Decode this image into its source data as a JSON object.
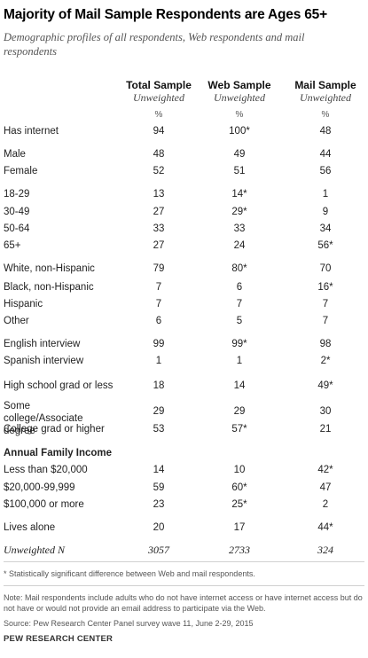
{
  "title": "Majority of Mail Sample Respondents are Ages 65+",
  "subtitle": "Demographic profiles of all respondents, Web respondents and mail respondents",
  "columns": [
    {
      "label": "Total Sample",
      "sub": "Unweighted",
      "unit": "%"
    },
    {
      "label": "Web Sample",
      "sub": "Unweighted",
      "unit": "%"
    },
    {
      "label": "Mail Sample",
      "sub": "Unweighted",
      "unit": "%"
    }
  ],
  "rows": [
    {
      "label": "Has internet",
      "values": [
        "94",
        "100*",
        "48"
      ]
    },
    {
      "label": "Male",
      "values": [
        "48",
        "49",
        "44"
      ]
    },
    {
      "label": "Female",
      "values": [
        "52",
        "51",
        "56"
      ]
    },
    {
      "label": "18-29",
      "values": [
        "13",
        "14*",
        "1"
      ]
    },
    {
      "label": "30-49",
      "values": [
        "27",
        "29*",
        "9"
      ]
    },
    {
      "label": "50-64",
      "values": [
        "33",
        "33",
        "34"
      ]
    },
    {
      "label": "65+",
      "values": [
        "27",
        "24",
        "56*"
      ]
    },
    {
      "label": "White, non-Hispanic",
      "values": [
        "79",
        "80*",
        "70"
      ]
    },
    {
      "label": "Black, non-Hispanic",
      "values": [
        "7",
        "6",
        "16*"
      ]
    },
    {
      "label": "Hispanic",
      "values": [
        "7",
        "7",
        "7"
      ]
    },
    {
      "label": "Other",
      "values": [
        "6",
        "5",
        "7"
      ]
    },
    {
      "label": "English interview",
      "values": [
        "99",
        "99*",
        "98"
      ]
    },
    {
      "label": "Spanish interview",
      "values": [
        "1",
        "1",
        "2*"
      ]
    },
    {
      "label": "High school grad or less",
      "values": [
        "18",
        "14",
        "49*"
      ]
    },
    {
      "label": "Some college/Associate degree",
      "values": [
        "29",
        "29",
        "30"
      ]
    },
    {
      "label": "College grad or higher",
      "values": [
        "53",
        "57*",
        "21"
      ]
    },
    {
      "label": "Annual Family Income",
      "values": [
        "",
        "",
        ""
      ]
    },
    {
      "label": "Less than $20,000",
      "values": [
        "14",
        "10",
        "42*"
      ]
    },
    {
      "label": "$20,000-99,999",
      "values": [
        "59",
        "60*",
        "47"
      ]
    },
    {
      "label": "$100,000 or more",
      "values": [
        "23",
        "25*",
        "2"
      ]
    },
    {
      "label": "Lives alone",
      "values": [
        "20",
        "17",
        "44*"
      ]
    },
    {
      "label": "Unweighted N",
      "values": [
        "3057",
        "2733",
        "324"
      ]
    }
  ],
  "footnote": "* Statistically significant difference between Web and mail respondents.",
  "note": "Note: Mail respondents include adults who do not have internet access or have internet access but do not have or would not provide an email address to participate via the Web.",
  "source": "Source: Pew Research Center Panel survey wave 11, June 2-29, 2015",
  "org": "PEW RESEARCH CENTER"
}
